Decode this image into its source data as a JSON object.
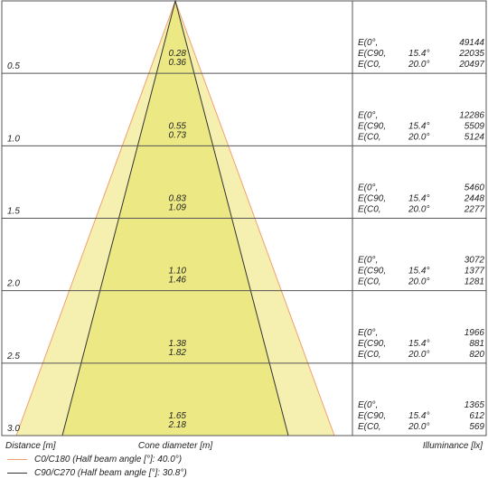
{
  "chart_data": {
    "type": "cone-diagram",
    "footer": {
      "distance_label": "Distance [m]",
      "diameter_label": "Cone diameter [m]",
      "illuminance_label": "Illuminance [lx]"
    },
    "series": [
      {
        "name": "C0/C180 (Half beam angle [°]: 40.0°)",
        "color": "#f0a070",
        "half_angle": 40.0
      },
      {
        "name": "C90/C270 (Half beam angle [°]: 30.8°)",
        "color": "#333333",
        "half_angle": 30.8
      }
    ],
    "rows": [
      {
        "distance": "0.5",
        "diam_c0": "0.28",
        "diam_c90": "0.36",
        "e0_label": "E(0°,",
        "e0": "49144",
        "ec90_label": "E(C90,",
        "ec90_angle": "15.4°",
        "ec90": "22035",
        "ec0_label": "E(C0,",
        "ec0_angle": "20.0°",
        "ec0": "20497"
      },
      {
        "distance": "1.0",
        "diam_c0": "0.55",
        "diam_c90": "0.73",
        "e0_label": "E(0°,",
        "e0": "12286",
        "ec90_label": "E(C90,",
        "ec90_angle": "15.4°",
        "ec90": "5509",
        "ec0_label": "E(C0,",
        "ec0_angle": "20.0°",
        "ec0": "5124"
      },
      {
        "distance": "1.5",
        "diam_c0": "0.83",
        "diam_c90": "1.09",
        "e0_label": "E(0°,",
        "e0": "5460",
        "ec90_label": "E(C90,",
        "ec90_angle": "15.4°",
        "ec90": "2448",
        "ec0_label": "E(C0,",
        "ec0_angle": "20.0°",
        "ec0": "2277"
      },
      {
        "distance": "2.0",
        "diam_c0": "1.10",
        "diam_c90": "1.46",
        "e0_label": "E(0°,",
        "e0": "3072",
        "ec90_label": "E(C90,",
        "ec90_angle": "15.4°",
        "ec90": "1377",
        "ec0_label": "E(C0,",
        "ec0_angle": "20.0°",
        "ec0": "1281"
      },
      {
        "distance": "2.5",
        "diam_c0": "1.38",
        "diam_c90": "1.82",
        "e0_label": "E(0°,",
        "e0": "1966",
        "ec90_label": "E(C90,",
        "ec90_angle": "15.4°",
        "ec90": "881",
        "ec0_label": "E(C0,",
        "ec0_angle": "20.0°",
        "ec0": "820"
      },
      {
        "distance": "3.0",
        "diam_c0": "1.65",
        "diam_c90": "2.18",
        "e0_label": "E(0°,",
        "e0": "1365",
        "ec90_label": "E(C90,",
        "ec90_angle": "15.4°",
        "ec90": "612",
        "ec0_label": "E(C0,",
        "ec0_angle": "20.0°",
        "ec0": "569"
      }
    ],
    "colors": {
      "outer_fill": "#f5f0b0",
      "inner_fill": "#ece985",
      "grid": "#555555"
    }
  }
}
